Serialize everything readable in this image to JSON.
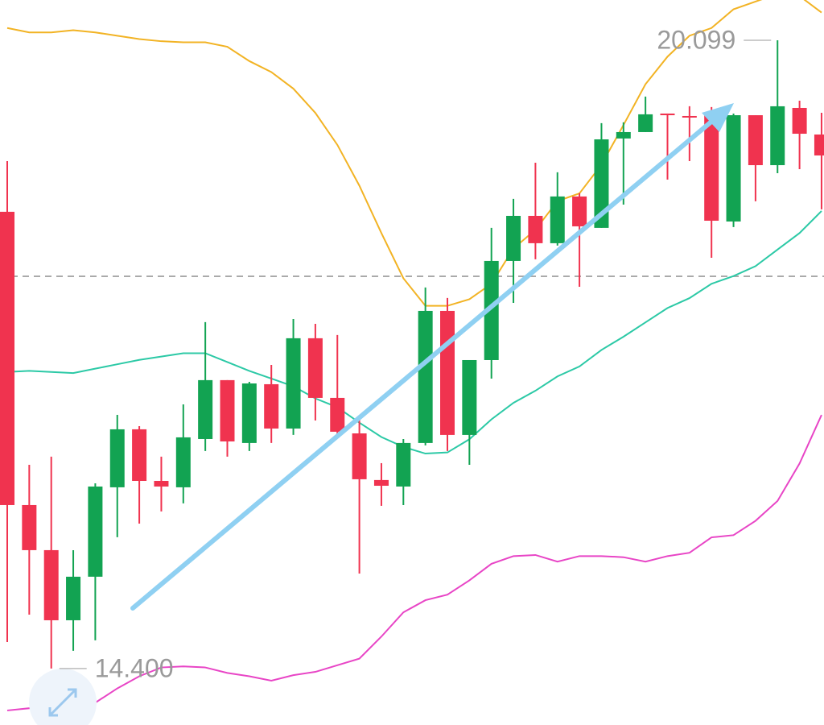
{
  "chart_data": {
    "type": "candlestick",
    "ylim": [
      13.888,
      20.464
    ],
    "up_color": "#12a352",
    "down_color": "#f0334f",
    "open": [
      18.543,
      15.883,
      15.474,
      14.838,
      15.233,
      16.044,
      16.57,
      16.102,
      16.044,
      16.482,
      17.016,
      16.446,
      16.979,
      16.577,
      17.396,
      16.855,
      16.533,
      16.11,
      16.051,
      16.446,
      17.644,
      16.519,
      17.198,
      18.097,
      18.506,
      18.258,
      18.682,
      18.397,
      19.208,
      19.266,
      19.434,
      19.412,
      19.419,
      18.455,
      19.419,
      18.966,
      19.485,
      19.244
    ],
    "high": [
      19.003,
      16.248,
      16.322,
      15.474,
      16.08,
      16.701,
      16.599,
      16.322,
      16.796,
      17.542,
      17.016,
      17.001,
      17.154,
      17.571,
      17.527,
      17.425,
      16.687,
      16.263,
      16.482,
      17.856,
      17.761,
      17.198,
      18.397,
      18.66,
      18.988,
      18.901,
      18.711,
      19.347,
      19.354,
      19.588,
      19.434,
      19.5,
      19.493,
      19.434,
      19.419,
      20.099,
      19.551,
      19.441
    ],
    "low": [
      14.641,
      14.889,
      14.4,
      14.561,
      14.656,
      15.591,
      15.715,
      15.825,
      15.898,
      16.373,
      16.322,
      16.373,
      16.446,
      16.519,
      16.65,
      16.519,
      15.262,
      15.876,
      15.883,
      16.424,
      16.373,
      16.248,
      17.03,
      17.717,
      18.112,
      18.236,
      17.863,
      18.397,
      18.608,
      19.266,
      18.835,
      19.003,
      18.126,
      18.404,
      18.638,
      18.893,
      18.93,
      18.565
    ],
    "close": [
      15.883,
      15.474,
      14.838,
      15.233,
      16.051,
      16.57,
      16.102,
      16.051,
      16.497,
      17.016,
      16.46,
      16.986,
      16.577,
      17.396,
      16.855,
      16.548,
      16.117,
      16.058,
      16.446,
      17.644,
      16.519,
      17.198,
      18.097,
      18.506,
      18.258,
      18.682,
      18.411,
      19.2,
      19.266,
      19.427,
      19.419,
      19.398,
      18.462,
      19.419,
      18.966,
      19.5,
      19.251,
      19.054
    ],
    "bands": [
      {
        "color": "#f2b324",
        "values": [
          20.21,
          20.17,
          20.17,
          20.19,
          20.17,
          20.14,
          20.11,
          20.09,
          20.08,
          20.08,
          20.04,
          19.91,
          19.81,
          19.66,
          19.44,
          19.15,
          18.78,
          18.35,
          17.94,
          17.69,
          17.69,
          17.75,
          17.89,
          18.21,
          18.38,
          18.64,
          18.71,
          18.97,
          19.33,
          19.7,
          19.95,
          20.14,
          20.21,
          20.38,
          20.45,
          20.52,
          20.5,
          20.35
        ]
      },
      {
        "color": "#2cc9a6",
        "values": [
          17.09,
          17.1,
          17.09,
          17.08,
          17.12,
          17.16,
          17.2,
          17.23,
          17.26,
          17.26,
          17.18,
          17.1,
          17.03,
          16.96,
          16.85,
          16.77,
          16.63,
          16.5,
          16.41,
          16.35,
          16.36,
          16.48,
          16.66,
          16.81,
          16.92,
          17.05,
          17.14,
          17.29,
          17.41,
          17.54,
          17.67,
          17.76,
          17.89,
          17.96,
          18.05,
          18.2,
          18.35,
          18.55
        ]
      },
      {
        "color": "#e845c6",
        "values": [
          14.02,
          14.04,
          13.99,
          13.98,
          14.09,
          14.22,
          14.33,
          14.41,
          14.42,
          14.41,
          14.36,
          14.33,
          14.29,
          14.34,
          14.37,
          14.43,
          14.49,
          14.69,
          14.91,
          15.02,
          15.07,
          15.2,
          15.35,
          15.42,
          15.43,
          15.37,
          15.42,
          15.42,
          15.41,
          15.37,
          15.42,
          15.45,
          15.59,
          15.61,
          15.74,
          15.92,
          16.26,
          16.7
        ]
      }
    ],
    "current_price": 17.958,
    "max_label": "20.099",
    "min_label": "14.400"
  }
}
